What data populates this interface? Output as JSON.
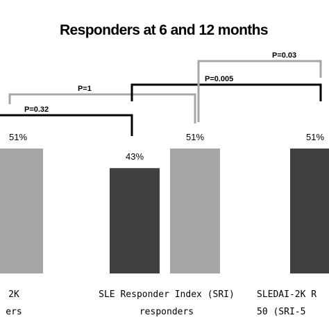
{
  "chart_data": {
    "type": "bar",
    "title": "Responders at 6 and 12 months",
    "ylim": [
      0,
      100
    ],
    "grid": false,
    "legend": "none",
    "categories": [
      {
        "lines": [
          "2K",
          "ers"
        ]
      },
      {
        "lines": [
          "SLE Responder Index (SRI)",
          "responders"
        ]
      },
      {
        "lines": [
          "SLEDAI-2K R",
          "50 (SRI-5"
        ]
      }
    ],
    "bars": [
      {
        "id": "bar-a-12m",
        "category": 0,
        "value": 51,
        "label": "51%",
        "color": "#a6a6a6"
      },
      {
        "id": "bar-b-6m",
        "category": 1,
        "value": 43,
        "label": "43%",
        "color": "#404040"
      },
      {
        "id": "bar-b-12m",
        "category": 1,
        "value": 51,
        "label": "51%",
        "color": "#a6a6a6"
      },
      {
        "id": "bar-c-6m",
        "category": 2,
        "value": 51,
        "label": "51%",
        "color": "#404040"
      }
    ],
    "comparisons": [
      {
        "id": "cmp-p032",
        "label": "P=0.32",
        "color": "#000000"
      },
      {
        "id": "cmp-p1",
        "label": "P=1",
        "color": "#a6a6a6"
      },
      {
        "id": "cmp-p0005",
        "label": "P=0.005",
        "color": "#000000"
      },
      {
        "id": "cmp-p003",
        "label": "P=0.03",
        "color": "#a6a6a6"
      }
    ],
    "colors": {
      "six_month": "#404040",
      "twelve_month": "#a6a6a6",
      "bracket_black": "#000000",
      "bracket_gray": "#a6a6a6",
      "border": "#000000"
    }
  }
}
